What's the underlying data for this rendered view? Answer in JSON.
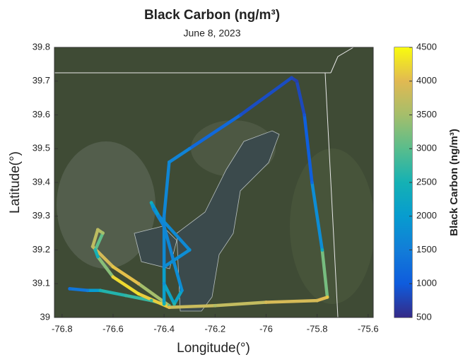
{
  "chart_data": {
    "type": "track",
    "title": "Black Carbon  (ng/m³)",
    "subtitle": "June 8, 2023",
    "xlabel": "Longitude(°)",
    "ylabel": "Latitude(°)",
    "colorbar_label": "Black Carbon  (ng/m³)",
    "colormap": "parula",
    "x": [
      -76.77,
      -76.7,
      -76.65,
      -76.55,
      -76.45,
      -76.38,
      -76.5,
      -76.6,
      -76.68,
      -76.66,
      -76.64,
      -76.67,
      -76.66,
      -76.6,
      -76.5,
      -76.38,
      -76.2,
      -76.0,
      -75.8,
      -75.76,
      -75.78,
      -75.82,
      -75.85,
      -75.88,
      -75.9,
      -76.1,
      -76.3,
      -76.38,
      -76.4,
      -76.4,
      -76.36,
      -76.33,
      -76.36,
      -76.4,
      -76.44,
      -76.45,
      -76.42,
      -76.3,
      -76.4,
      -76.4
    ],
    "y": [
      39.085,
      39.08,
      39.08,
      39.065,
      39.05,
      39.035,
      39.1,
      39.15,
      39.21,
      39.26,
      39.25,
      39.2,
      39.18,
      39.12,
      39.07,
      39.03,
      39.035,
      39.045,
      39.05,
      39.06,
      39.2,
      39.4,
      39.6,
      39.7,
      39.71,
      39.6,
      39.5,
      39.46,
      39.3,
      39.1,
      39.04,
      39.08,
      39.16,
      39.27,
      39.32,
      39.34,
      39.3,
      39.2,
      39.15,
      39.04
    ],
    "values": [
      1300,
      1500,
      2500,
      2700,
      2800,
      3000,
      4000,
      4100,
      3700,
      3700,
      3500,
      2600,
      2400,
      4200,
      4300,
      4000,
      3600,
      3900,
      3900,
      4100,
      2300,
      1200,
      900,
      700,
      800,
      900,
      1500,
      1700,
      1600,
      1800,
      2600,
      1800,
      1700,
      1600,
      1600,
      2400,
      1600,
      1800,
      1700,
      2500
    ],
    "xlim": [
      -76.83,
      -75.58
    ],
    "ylim": [
      39,
      39.8
    ],
    "xticks": [
      -76.8,
      -76.6,
      -76.4,
      -76.2,
      -76,
      -75.8,
      -75.6
    ],
    "yticks": [
      39,
      39.1,
      39.2,
      39.3,
      39.4,
      39.5,
      39.6,
      39.7,
      39.8
    ],
    "clim": [
      500,
      4500
    ],
    "cticks": [
      500,
      1000,
      1500,
      2000,
      2500,
      3000,
      3500,
      4000,
      4500
    ]
  }
}
